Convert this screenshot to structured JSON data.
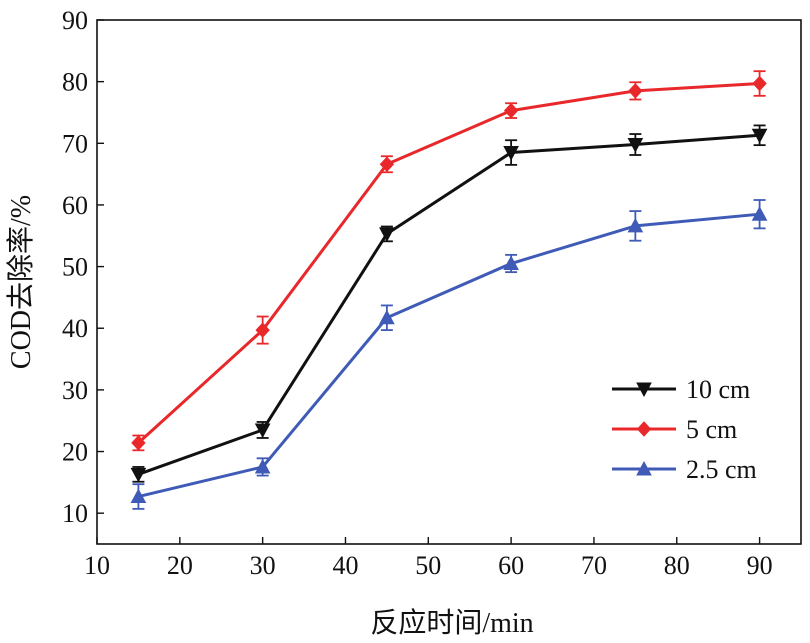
{
  "chart_data": {
    "type": "line",
    "title": "",
    "xlabel": "反应时间/min",
    "ylabel": "COD去除率/%",
    "xlim": [
      10,
      95
    ],
    "ylim": [
      5,
      90
    ],
    "xticks": [
      10,
      20,
      30,
      40,
      50,
      60,
      70,
      80,
      90
    ],
    "yticks": [
      10,
      20,
      30,
      40,
      50,
      60,
      70,
      80,
      90
    ],
    "x": [
      15,
      30,
      45,
      60,
      75,
      90
    ],
    "grid": false,
    "legend_position": "bottom-right",
    "series": [
      {
        "name": "10 cm",
        "color": "#111111",
        "marker": "triangle-down",
        "values": [
          16.3,
          23.5,
          55.3,
          68.5,
          69.8,
          71.3
        ],
        "errors": [
          1.2,
          1.3,
          1.2,
          2.0,
          1.7,
          1.6
        ]
      },
      {
        "name": "5 cm",
        "color": "#e8282a",
        "marker": "diamond",
        "values": [
          21.4,
          39.7,
          66.6,
          75.3,
          78.5,
          79.7
        ],
        "errors": [
          1.2,
          2.2,
          1.3,
          1.2,
          1.4,
          2.0
        ]
      },
      {
        "name": "2.5 cm",
        "color": "#3f5bb7",
        "marker": "triangle-up",
        "values": [
          12.7,
          17.5,
          41.7,
          50.5,
          56.6,
          58.5
        ],
        "errors": [
          2.0,
          1.4,
          2.0,
          1.4,
          2.4,
          2.3
        ]
      }
    ]
  }
}
